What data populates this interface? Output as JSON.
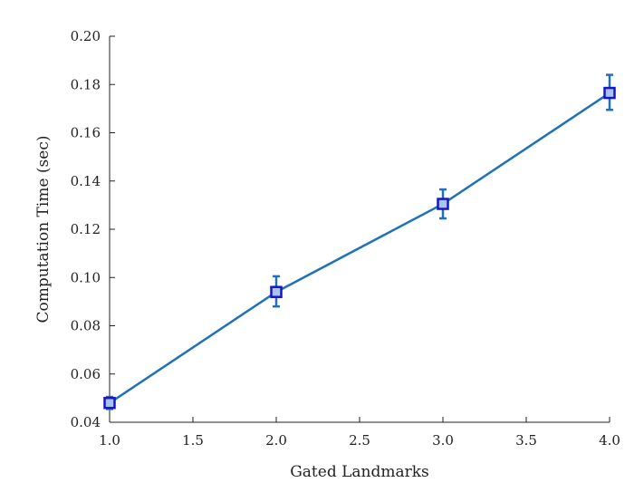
{
  "chart_data": {
    "type": "line",
    "title": "",
    "xlabel": "Gated Landmarks",
    "ylabel": "Computation Time (sec)",
    "xlim": [
      1.0,
      4.0
    ],
    "ylim": [
      0.04,
      0.2
    ],
    "x_ticks": [
      "1.0",
      "1.5",
      "2.0",
      "2.5",
      "3.0",
      "3.5",
      "4.0"
    ],
    "y_ticks": [
      "0.04",
      "0.06",
      "0.08",
      "0.10",
      "0.12",
      "0.14",
      "0.16",
      "0.18",
      "0.20"
    ],
    "grid": false,
    "series": [
      {
        "x": [
          1.0,
          2.0,
          3.0,
          4.0
        ],
        "y": [
          0.048,
          0.094,
          0.1305,
          0.1765
        ],
        "error_low": [
          0.0455,
          0.088,
          0.1245,
          0.1695
        ],
        "error_high": [
          0.0505,
          0.1005,
          0.1365,
          0.184
        ],
        "marker": "square",
        "line_color": "#1f72b8",
        "marker_edge_color": "#1616c8",
        "marker_face_color": "#a9c4f2"
      }
    ]
  }
}
